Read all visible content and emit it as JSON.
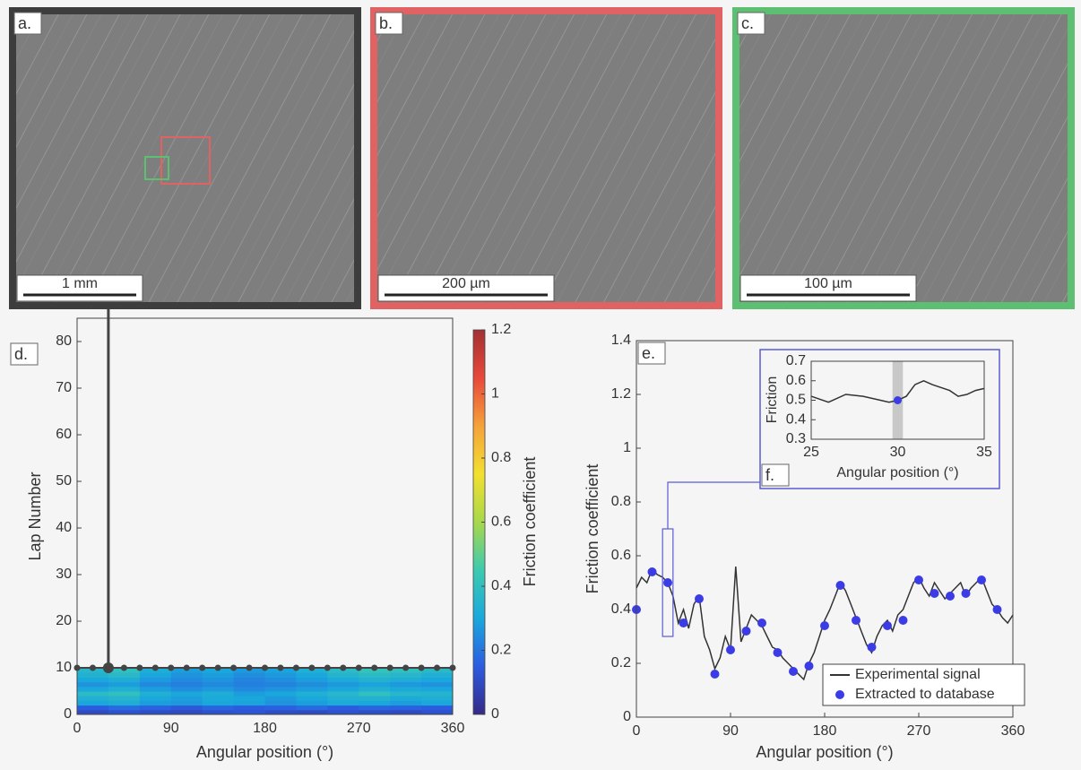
{
  "images": [
    {
      "label": "a.",
      "scale_bar": "1 mm",
      "border_color": "#3d3d3d"
    },
    {
      "label": "b.",
      "scale_bar": "200 µm",
      "border_color": "#e06262"
    },
    {
      "label": "c.",
      "scale_bar": "100 µm",
      "border_color": "#5cbf72"
    }
  ],
  "chart_data": [
    {
      "type": "heatmap",
      "label": "d.",
      "xlabel": "Angular position (°)",
      "ylabel": "Lap Number",
      "xlim": [
        0,
        360
      ],
      "xticks": [
        0,
        90,
        180,
        270,
        360
      ],
      "ylim": [
        0,
        85
      ],
      "yticks": [
        0,
        10,
        20,
        30,
        40,
        50,
        60,
        70,
        80
      ],
      "xbins": [
        0,
        30,
        60,
        90,
        120,
        150,
        180,
        210,
        240,
        270,
        300,
        330,
        360
      ],
      "ybins": [
        0,
        1,
        2,
        3,
        4,
        5,
        6,
        7,
        8,
        9,
        10
      ],
      "values": [
        [
          0.1,
          0.12,
          0.11,
          0.1,
          0.12,
          0.13,
          0.11,
          0.1,
          0.12,
          0.11,
          0.1,
          0.12
        ],
        [
          0.15,
          0.18,
          0.16,
          0.14,
          0.17,
          0.15,
          0.16,
          0.18,
          0.15,
          0.17,
          0.16,
          0.15
        ],
        [
          0.3,
          0.32,
          0.28,
          0.27,
          0.3,
          0.29,
          0.26,
          0.28,
          0.31,
          0.3,
          0.28,
          0.3
        ],
        [
          0.33,
          0.35,
          0.3,
          0.28,
          0.31,
          0.3,
          0.27,
          0.3,
          0.33,
          0.34,
          0.31,
          0.32
        ],
        [
          0.38,
          0.4,
          0.33,
          0.3,
          0.32,
          0.28,
          0.3,
          0.33,
          0.36,
          0.4,
          0.36,
          0.35
        ],
        [
          0.3,
          0.33,
          0.28,
          0.25,
          0.27,
          0.24,
          0.26,
          0.28,
          0.3,
          0.33,
          0.31,
          0.3
        ],
        [
          0.26,
          0.28,
          0.24,
          0.22,
          0.24,
          0.22,
          0.23,
          0.25,
          0.27,
          0.29,
          0.27,
          0.26
        ],
        [
          0.3,
          0.32,
          0.27,
          0.24,
          0.26,
          0.23,
          0.25,
          0.28,
          0.31,
          0.34,
          0.32,
          0.3
        ],
        [
          0.34,
          0.37,
          0.3,
          0.26,
          0.28,
          0.25,
          0.27,
          0.3,
          0.35,
          0.38,
          0.36,
          0.33
        ],
        [
          0.36,
          0.4,
          0.32,
          0.28,
          0.3,
          0.27,
          0.29,
          0.33,
          0.38,
          0.42,
          0.4,
          0.37
        ]
      ],
      "clim": [
        0,
        1.2
      ],
      "cticks": [
        0,
        0.2,
        0.4,
        0.6,
        0.8,
        1,
        1.2
      ],
      "colorbar_label": "Friction coefficient",
      "colormap": [
        "#352a87",
        "#2c5be0",
        "#1aa8dc",
        "#3ccab0",
        "#a8d84a",
        "#f2e030",
        "#f5a23a",
        "#e8483a",
        "#a33033"
      ],
      "sampled_lap": 10,
      "sampled_angles": [
        0,
        15,
        30,
        45,
        60,
        75,
        90,
        105,
        120,
        135,
        150,
        165,
        180,
        195,
        210,
        225,
        240,
        255,
        270,
        285,
        300,
        315,
        330,
        345,
        360
      ],
      "highlight_angle": 30
    },
    {
      "type": "line",
      "label": "e.",
      "xlabel": "Angular position (°)",
      "ylabel": "Friction coefficient",
      "xlim": [
        0,
        360
      ],
      "xticks": [
        0,
        90,
        180,
        270,
        360
      ],
      "ylim": [
        0,
        1.4
      ],
      "yticks": [
        0,
        0.2,
        0.4,
        0.6,
        0.8,
        1,
        1.2,
        1.4
      ],
      "legend": "lower right",
      "series": [
        {
          "name": "Experimental signal",
          "color": "#333333",
          "kind": "line",
          "x": [
            0,
            5,
            10,
            15,
            20,
            25,
            30,
            35,
            40,
            45,
            50,
            55,
            60,
            65,
            70,
            75,
            80,
            85,
            90,
            95,
            100,
            105,
            110,
            115,
            120,
            125,
            130,
            135,
            140,
            145,
            150,
            155,
            160,
            165,
            170,
            175,
            180,
            185,
            190,
            195,
            200,
            205,
            210,
            215,
            220,
            225,
            230,
            235,
            240,
            245,
            250,
            255,
            260,
            265,
            270,
            275,
            280,
            285,
            290,
            295,
            300,
            305,
            310,
            315,
            320,
            325,
            330,
            335,
            340,
            345,
            350,
            355,
            360
          ],
          "values": [
            0.48,
            0.52,
            0.5,
            0.55,
            0.53,
            0.52,
            0.5,
            0.45,
            0.35,
            0.4,
            0.33,
            0.42,
            0.45,
            0.3,
            0.25,
            0.18,
            0.22,
            0.3,
            0.25,
            0.56,
            0.28,
            0.33,
            0.38,
            0.36,
            0.34,
            0.3,
            0.26,
            0.25,
            0.22,
            0.2,
            0.18,
            0.16,
            0.14,
            0.2,
            0.24,
            0.3,
            0.36,
            0.4,
            0.45,
            0.5,
            0.47,
            0.42,
            0.37,
            0.32,
            0.27,
            0.24,
            0.3,
            0.34,
            0.36,
            0.32,
            0.38,
            0.4,
            0.45,
            0.5,
            0.52,
            0.48,
            0.45,
            0.5,
            0.47,
            0.44,
            0.46,
            0.48,
            0.5,
            0.45,
            0.48,
            0.5,
            0.52,
            0.47,
            0.42,
            0.4,
            0.37,
            0.35,
            0.38
          ]
        },
        {
          "name": "Extracted to database",
          "color": "#3c3ce6",
          "kind": "scatter",
          "x": [
            0,
            15,
            30,
            45,
            60,
            75,
            90,
            105,
            120,
            135,
            150,
            165,
            180,
            195,
            210,
            225,
            240,
            255,
            270,
            285,
            300,
            315,
            330,
            345
          ],
          "values": [
            0.4,
            0.54,
            0.5,
            0.35,
            0.44,
            0.16,
            0.25,
            0.32,
            0.35,
            0.24,
            0.17,
            0.19,
            0.34,
            0.49,
            0.36,
            0.26,
            0.34,
            0.36,
            0.51,
            0.46,
            0.45,
            0.46,
            0.51,
            0.4
          ]
        }
      ]
    },
    {
      "type": "line",
      "label": "f.",
      "xlabel": "Angular position (°)",
      "ylabel": "Friction",
      "xlim": [
        25,
        35
      ],
      "xticks": [
        25,
        30,
        35
      ],
      "ylim": [
        0.3,
        0.7
      ],
      "yticks": [
        0.3,
        0.4,
        0.5,
        0.6,
        0.7
      ],
      "highlight_range": [
        29.7,
        30.3
      ],
      "frame_color": "#5b5bd6",
      "series": [
        {
          "color": "#333333",
          "kind": "line",
          "x": [
            25,
            26,
            27,
            28,
            29,
            29.5,
            30,
            30.5,
            31,
            31.5,
            32,
            33,
            33.5,
            34,
            34.5,
            35
          ],
          "values": [
            0.52,
            0.49,
            0.53,
            0.52,
            0.5,
            0.49,
            0.5,
            0.52,
            0.58,
            0.6,
            0.58,
            0.55,
            0.52,
            0.53,
            0.55,
            0.56
          ]
        },
        {
          "color": "#3c3ce6",
          "kind": "scatter",
          "x": [
            30
          ],
          "values": [
            0.5
          ]
        }
      ]
    }
  ]
}
